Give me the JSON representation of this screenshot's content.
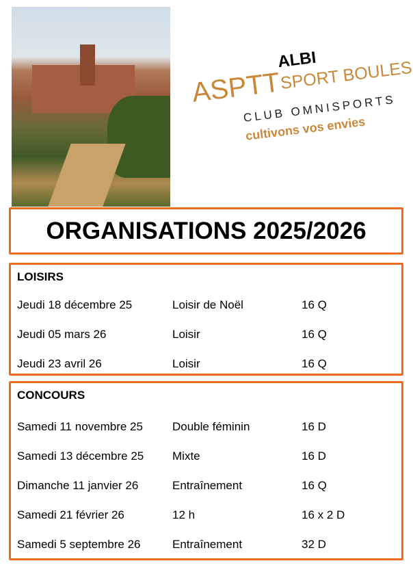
{
  "logo": {
    "asptt": "ASPTT",
    "albi": "ALBI",
    "sport_boules": "SPORT BOULES",
    "club": "CLUB OMNISPORTS",
    "slogan": "cultivons vos envies"
  },
  "title": "ORGANISATIONS 2025/2026",
  "loisirs": {
    "heading": "LOISIRS",
    "rows": [
      {
        "date": "Jeudi 18 décembre 25",
        "event": "Loisir de Noël",
        "format": "16 Q"
      },
      {
        "date": "Jeudi 05 mars 26",
        "event": "Loisir",
        "format": "16 Q"
      },
      {
        "date": "Jeudi 23 avril 26",
        "event": "Loisir",
        "format": "16 Q"
      }
    ]
  },
  "concours": {
    "heading": "CONCOURS",
    "rows": [
      {
        "date": "Samedi 11 novembre 25",
        "event": "Double féminin",
        "format": "16 D"
      },
      {
        "date": "Samedi 13 décembre 25",
        "event": "Mixte",
        "format": "16 D"
      },
      {
        "date": "Dimanche 11 janvier 26",
        "event": "Entraînement",
        "format": "16 Q"
      },
      {
        "date": "Samedi 21 février 26",
        "event": "12 h",
        "format": "16 x 2 D"
      },
      {
        "date": "Samedi 5 septembre 26",
        "event": "Entraînement",
        "format": "32 D"
      }
    ]
  },
  "colors": {
    "accent": "#ef6c1f",
    "brand_gold": "#c8883a"
  }
}
